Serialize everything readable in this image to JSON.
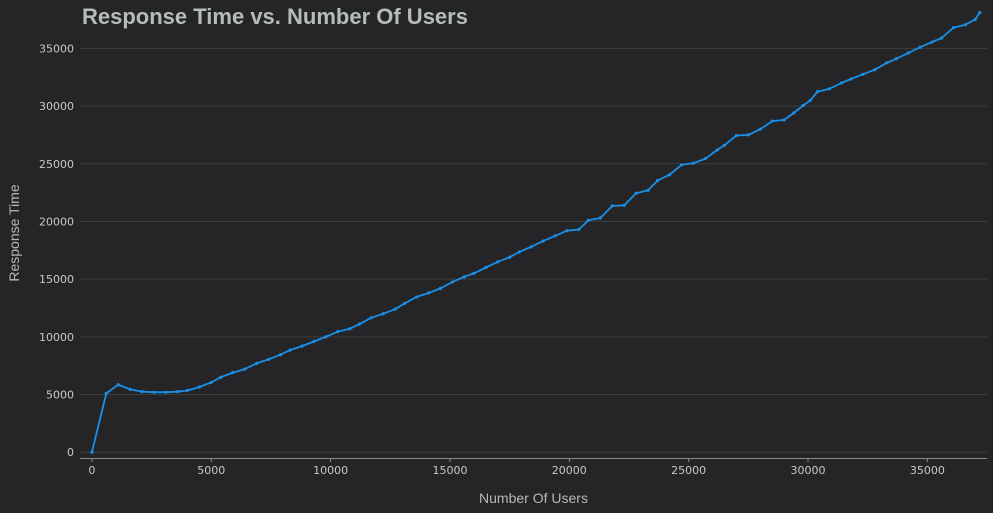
{
  "chart_data": {
    "type": "line",
    "title": "Response Time vs. Number Of Users",
    "xlabel": "Number Of Users",
    "ylabel": "Response Time",
    "xlim": [
      -500,
      37500
    ],
    "ylim": [
      -500,
      38500
    ],
    "xticks": [
      0,
      5000,
      10000,
      15000,
      20000,
      25000,
      30000,
      35000
    ],
    "yticks": [
      0,
      5000,
      10000,
      15000,
      20000,
      25000,
      30000,
      35000
    ],
    "grid": "horizontal",
    "line_color": "#1a8fe8",
    "series": [
      {
        "x": [
          0,
          600,
          1100,
          1600,
          2100,
          2600,
          3100,
          3600,
          4000,
          4500,
          5000,
          5400,
          5900,
          6400,
          6900,
          7400,
          7900,
          8300,
          8800,
          9300,
          9800,
          10300,
          10800,
          11200,
          11700,
          12200,
          12700,
          13100,
          13600,
          14100,
          14600,
          15100,
          15600,
          16000,
          16500,
          17000,
          17500,
          17900,
          18400,
          18900,
          19400,
          19900,
          20400,
          20800,
          21300,
          21800,
          22300,
          22800,
          23300,
          23700,
          24200,
          24700,
          25200,
          25700,
          26200,
          26500,
          27000,
          27500,
          28000,
          28500,
          29000,
          29400,
          29800,
          30100,
          30400,
          30900,
          31400,
          31800,
          32300,
          32800,
          33300,
          33700,
          34200,
          34700,
          35200,
          35600,
          36100,
          36600,
          37000,
          37200
        ],
        "y": [
          0,
          5100,
          5850,
          5450,
          5250,
          5200,
          5200,
          5250,
          5350,
          5650,
          6050,
          6500,
          6900,
          7200,
          7700,
          8050,
          8450,
          8850,
          9200,
          9600,
          10000,
          10450,
          10700,
          11100,
          11650,
          12000,
          12400,
          12900,
          13450,
          13800,
          14200,
          14750,
          15200,
          15500,
          16000,
          16500,
          16900,
          17350,
          17800,
          18300,
          18750,
          19200,
          19300,
          20100,
          20300,
          21350,
          21400,
          22450,
          22700,
          23550,
          24050,
          24900,
          25050,
          25450,
          26200,
          26600,
          27450,
          27500,
          28000,
          28700,
          28800,
          29400,
          30050,
          30500,
          31250,
          31500,
          32000,
          32350,
          32750,
          33150,
          33750,
          34100,
          34600,
          35100,
          35550,
          35900,
          36800,
          37050,
          37500,
          38100
        ]
      }
    ]
  }
}
